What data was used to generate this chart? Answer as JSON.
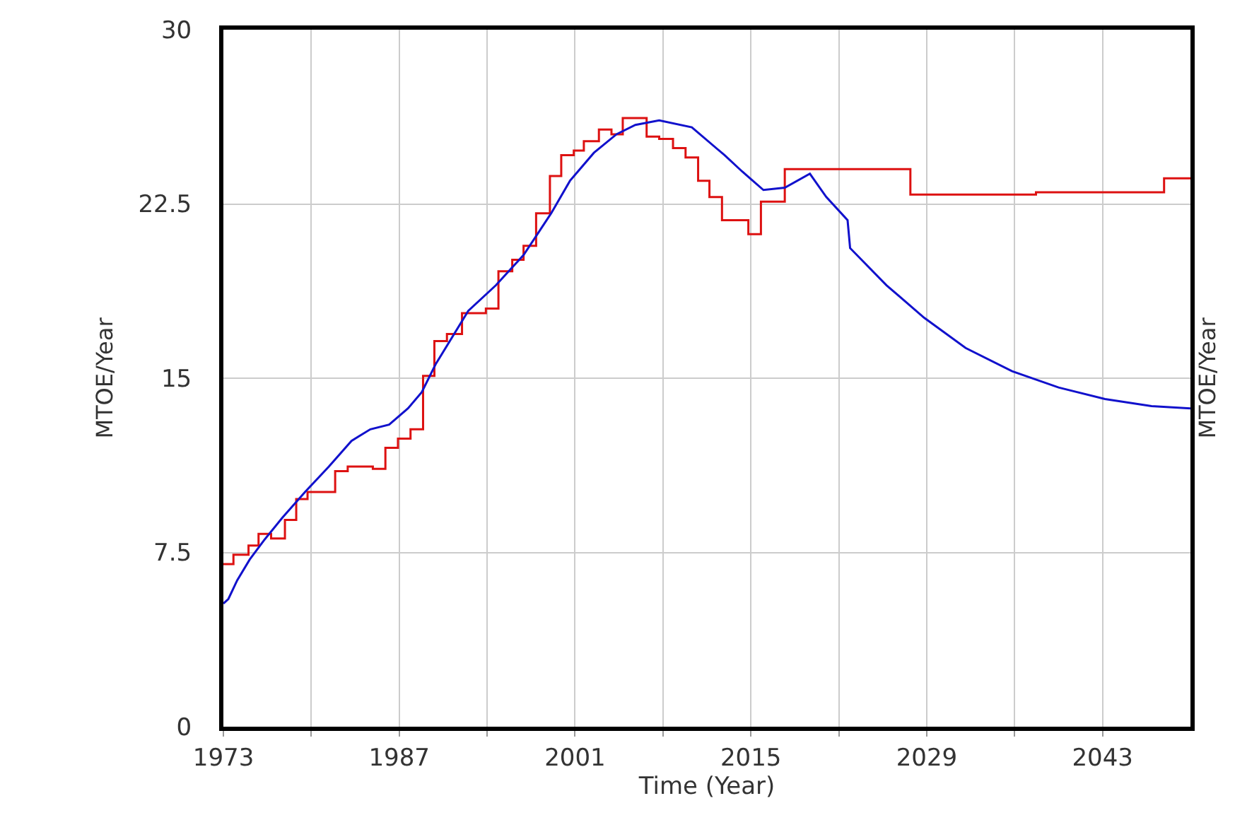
{
  "chart_data": {
    "type": "line",
    "xlabel": "Time (Year)",
    "ylabel": "MTOE/Year",
    "y2label": "MTOE/Year",
    "xlim": [
      1973,
      2050
    ],
    "xticks": [
      1973,
      {
        "value": 1980,
        "label": null
      },
      1987,
      {
        "value": 1994,
        "label": null
      },
      2001,
      {
        "value": 2008,
        "label": null
      },
      2015,
      {
        "value": 2022,
        "label": null
      },
      2029,
      {
        "value": 2036,
        "label": null
      },
      2043
    ],
    "ylim": [
      0,
      30
    ],
    "yticks": [
      0,
      7.5,
      15,
      22.5,
      30
    ],
    "grid": true,
    "series": [
      {
        "type": "step",
        "color": "#dd1111",
        "x": [
          1973,
          1973.8,
          1975,
          1975.8,
          1976.8,
          1977.9,
          1978.8,
          1979.7,
          1981.9,
          1982.9,
          1984.9,
          1985.9,
          1986.9,
          1987.9,
          1988.9,
          1989.8,
          1990.8,
          1992,
          1993.9,
          1994.9,
          1996,
          1996.9,
          1997.9,
          1999,
          1999.9,
          2000.9,
          2001.7,
          2002.9,
          2003.9,
          2004.8,
          2006.7,
          2007.7,
          2008.8,
          2009.8,
          2010.8,
          2011.7,
          2012.7,
          2014.8,
          2015.8,
          2017.7,
          2027.7,
          2037.7,
          2047.9,
          2050
        ],
        "values": [
          7.0,
          7.4,
          7.8,
          8.3,
          8.1,
          8.9,
          9.8,
          10.1,
          11.0,
          11.2,
          11.1,
          12.0,
          12.4,
          12.8,
          15.1,
          16.6,
          16.9,
          17.8,
          18.0,
          19.6,
          20.1,
          20.7,
          22.1,
          23.7,
          24.6,
          24.8,
          25.2,
          25.7,
          25.5,
          26.2,
          25.4,
          25.3,
          24.9,
          24.5,
          23.5,
          22.8,
          21.8,
          21.2,
          22.6,
          24.0,
          22.9,
          23.0,
          23.6,
          23.6
        ]
      },
      {
        "type": "line",
        "color": "#1111cc",
        "x": [
          1973,
          1973.4,
          1974.1,
          1975.1,
          1976.2,
          1977.7,
          1979.5,
          1981.4,
          1983.2,
          1984.7,
          1986.2,
          1987.7,
          1988.8,
          1989.9,
          1992.5,
          1994.7,
          1996.9,
          1999.1,
          2000.6,
          2002.5,
          2004.3,
          2005.8,
          2007.7,
          2010.3,
          2012.9,
          2014.3,
          2016,
          2017.7,
          2019.7,
          2021,
          2022.7,
          2022.9,
          2025.8,
          2028.8,
          2032.1,
          2035.8,
          2039.5,
          2043.2,
          2046.9,
          2050
        ],
        "values": [
          5.3,
          5.5,
          6.3,
          7.2,
          8.0,
          9.0,
          10.1,
          11.2,
          12.3,
          12.8,
          13.0,
          13.7,
          14.4,
          15.6,
          17.9,
          19.0,
          20.3,
          22.1,
          23.5,
          24.7,
          25.5,
          25.9,
          26.1,
          25.8,
          24.6,
          23.9,
          23.1,
          23.2,
          23.8,
          22.8,
          21.8,
          20.6,
          19.0,
          17.6,
          16.3,
          15.3,
          14.6,
          14.1,
          13.8,
          13.7
        ]
      }
    ]
  }
}
